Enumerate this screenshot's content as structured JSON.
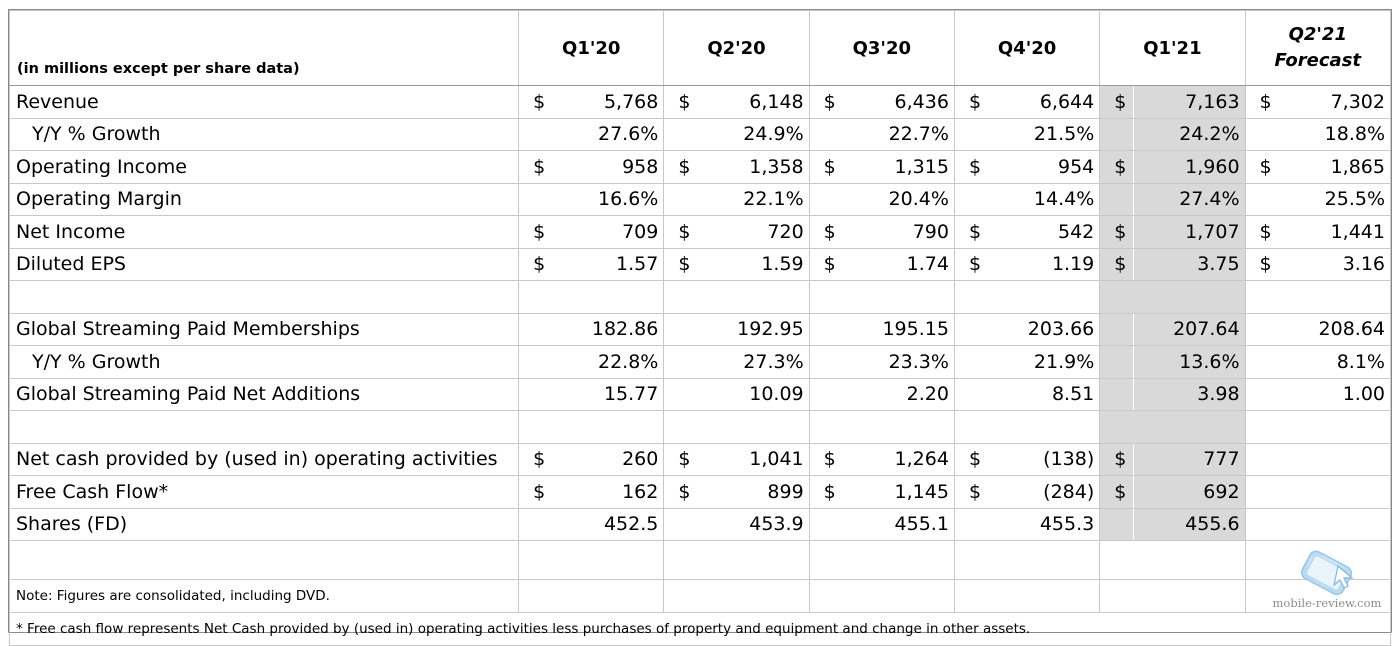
{
  "header": {
    "units_note": "(in millions except per share data)",
    "periods": [
      "Q1'20",
      "Q2'20",
      "Q3'20",
      "Q4'20",
      "Q1'21"
    ],
    "forecast": {
      "line1": "Q2'21",
      "line2": "Forecast"
    }
  },
  "rows": [
    {
      "label": "Revenue",
      "values": [
        {
          "d": "$",
          "v": "5,768"
        },
        {
          "d": "$",
          "v": "6,148"
        },
        {
          "d": "$",
          "v": "6,436"
        },
        {
          "d": "$",
          "v": "6,644"
        },
        {
          "d": "$",
          "v": "7,163"
        },
        {
          "d": "$",
          "v": "7,302"
        }
      ]
    },
    {
      "label": "Y/Y % Growth",
      "values": [
        {
          "d": "",
          "v": "27.6%"
        },
        {
          "d": "",
          "v": "24.9%"
        },
        {
          "d": "",
          "v": "22.7%"
        },
        {
          "d": "",
          "v": "21.5%"
        },
        {
          "d": "",
          "v": "24.2%"
        },
        {
          "d": "",
          "v": "18.8%"
        }
      ]
    },
    {
      "label": "Operating Income",
      "values": [
        {
          "d": "$",
          "v": "958"
        },
        {
          "d": "$",
          "v": "1,358"
        },
        {
          "d": "$",
          "v": "1,315"
        },
        {
          "d": "$",
          "v": "954"
        },
        {
          "d": "$",
          "v": "1,960"
        },
        {
          "d": "$",
          "v": "1,865"
        }
      ]
    },
    {
      "label": "Operating Margin",
      "values": [
        {
          "d": "",
          "v": "16.6%"
        },
        {
          "d": "",
          "v": "22.1%"
        },
        {
          "d": "",
          "v": "20.4%"
        },
        {
          "d": "",
          "v": "14.4%"
        },
        {
          "d": "",
          "v": "27.4%"
        },
        {
          "d": "",
          "v": "25.5%"
        }
      ]
    },
    {
      "label": "Net Income",
      "values": [
        {
          "d": "$",
          "v": "709"
        },
        {
          "d": "$",
          "v": "720"
        },
        {
          "d": "$",
          "v": "790"
        },
        {
          "d": "$",
          "v": "542"
        },
        {
          "d": "$",
          "v": "1,707"
        },
        {
          "d": "$",
          "v": "1,441"
        }
      ]
    },
    {
      "label": "Diluted EPS",
      "values": [
        {
          "d": "$",
          "v": "1.57"
        },
        {
          "d": "$",
          "v": "1.59"
        },
        {
          "d": "$",
          "v": "1.74"
        },
        {
          "d": "$",
          "v": "1.19"
        },
        {
          "d": "$",
          "v": "3.75"
        },
        {
          "d": "$",
          "v": "3.16"
        }
      ]
    },
    {
      "blank": true
    },
    {
      "label": "Global Streaming Paid Memberships",
      "values": [
        {
          "d": "",
          "v": "182.86"
        },
        {
          "d": "",
          "v": "192.95"
        },
        {
          "d": "",
          "v": "195.15"
        },
        {
          "d": "",
          "v": "203.66"
        },
        {
          "d": "",
          "v": "207.64"
        },
        {
          "d": "",
          "v": "208.64"
        }
      ]
    },
    {
      "label": "Y/Y % Growth",
      "values": [
        {
          "d": "",
          "v": "22.8%"
        },
        {
          "d": "",
          "v": "27.3%"
        },
        {
          "d": "",
          "v": "23.3%"
        },
        {
          "d": "",
          "v": "21.9%"
        },
        {
          "d": "",
          "v": "13.6%"
        },
        {
          "d": "",
          "v": "8.1%"
        }
      ]
    },
    {
      "label": "Global Streaming Paid Net Additions",
      "values": [
        {
          "d": "",
          "v": "15.77"
        },
        {
          "d": "",
          "v": "10.09"
        },
        {
          "d": "",
          "v": "2.20"
        },
        {
          "d": "",
          "v": "8.51"
        },
        {
          "d": "",
          "v": "3.98"
        },
        {
          "d": "",
          "v": "1.00"
        }
      ]
    },
    {
      "blank": true
    },
    {
      "label": "Net cash provided by (used in) operating activities",
      "values": [
        {
          "d": "$",
          "v": "260"
        },
        {
          "d": "$",
          "v": "1,041"
        },
        {
          "d": "$",
          "v": "1,264"
        },
        {
          "d": "$",
          "v": "(138)"
        },
        {
          "d": "$",
          "v": "777"
        },
        {
          "d": "",
          "v": ""
        }
      ]
    },
    {
      "label": "Free Cash Flow*",
      "values": [
        {
          "d": "$",
          "v": "162"
        },
        {
          "d": "$",
          "v": "899"
        },
        {
          "d": "$",
          "v": "1,145"
        },
        {
          "d": "$",
          "v": "(284)"
        },
        {
          "d": "$",
          "v": "692"
        },
        {
          "d": "",
          "v": ""
        }
      ]
    },
    {
      "label": "Shares (FD)",
      "values": [
        {
          "d": "",
          "v": "452.5"
        },
        {
          "d": "",
          "v": "453.9"
        },
        {
          "d": "",
          "v": "455.1"
        },
        {
          "d": "",
          "v": "455.3"
        },
        {
          "d": "",
          "v": "455.6"
        },
        {
          "d": "",
          "v": ""
        }
      ]
    }
  ],
  "note": "Note: Figures are consolidated, including DVD.",
  "footnote": "* Free cash flow represents Net Cash provided by (used in) operating activities less purchases of property and equipment and change in other assets.",
  "watermark": {
    "text": "mobile-review.com"
  },
  "colors": {
    "highlight_column": "#d9d9d9",
    "grid": "#c8c8c8",
    "watermark": "#a9d0ea"
  }
}
